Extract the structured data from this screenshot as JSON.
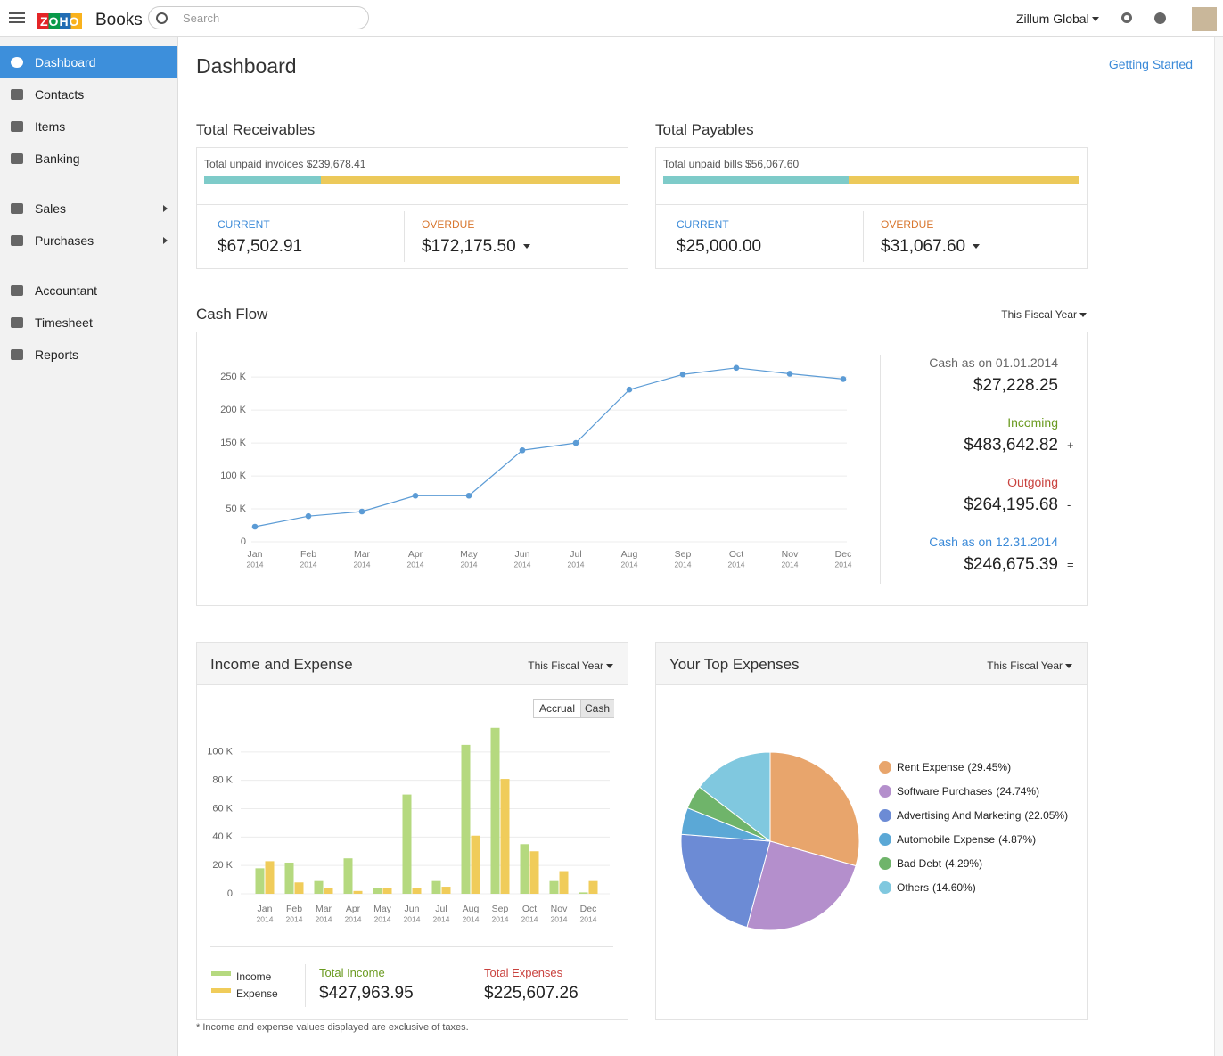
{
  "header": {
    "logo": "ZOHO",
    "brand": "Books",
    "search": "Search",
    "org": "Zillum Global"
  },
  "sidebar": {
    "items": [
      "Dashboard",
      "Contacts",
      "Items",
      "Banking",
      "Sales",
      "Purchases",
      "Accountant",
      "Timesheet",
      "Reports"
    ]
  },
  "page": {
    "title": "Dashboard",
    "link": "Getting Started"
  },
  "receivables": {
    "title": "Total Receivables",
    "summary": "Total unpaid invoices $239,678.41",
    "current_label": "CURRENT",
    "current": {
      "value": 67502.91,
      "label": "$67,502.91"
    },
    "overdue_label": "OVERDUE",
    "overdue": {
      "value": 172175.5,
      "label": "$172,175.50"
    }
  },
  "payables": {
    "title": "Total Payables",
    "summary": "Total unpaid bills $56,067.60",
    "current_label": "CURRENT",
    "current": {
      "value": 25000,
      "label": "$25,000.00"
    },
    "overdue_label": "OVERDUE",
    "overdue": {
      "value": 31067.6,
      "label": "$31,067.60"
    }
  },
  "chart_data": [
    {
      "type": "line",
      "title": "Cash Flow",
      "period": "This Fiscal Year",
      "categories": [
        "Jan",
        "Feb",
        "Mar",
        "Apr",
        "May",
        "Jun",
        "Jul",
        "Aug",
        "Sep",
        "Oct",
        "Nov",
        "Dec"
      ],
      "category_sublabel": "2014",
      "values": [
        23,
        39,
        46,
        70,
        70,
        139,
        150,
        231,
        254,
        264,
        255,
        247
      ],
      "color": "#5b9bd5",
      "ylim": [
        0,
        280
      ],
      "yticks": [
        0,
        {
          "value": 50,
          "label": "50 K"
        },
        {
          "value": 100,
          "label": "100 K"
        },
        {
          "value": 150,
          "label": "150 K"
        },
        {
          "value": 200,
          "label": "200 K"
        },
        {
          "value": 250,
          "label": "250 K"
        }
      ],
      "grid": true,
      "summary": [
        {
          "label": "Cash as on 01.01.2014",
          "amount": "$27,228.25",
          "color": "#666666"
        },
        {
          "label": "Incoming",
          "amount": "$483,642.82",
          "sign": "+",
          "color": "#6a9a1f"
        },
        {
          "label": "Outgoing",
          "amount": "$264,195.68",
          "sign": "-",
          "color": "#c9423e"
        },
        {
          "label": "Cash as on 12.31.2014",
          "amount": "$246,675.39",
          "sign": "=",
          "color": "#3b8ad8"
        }
      ]
    },
    {
      "type": "bar",
      "title": "Income and Expense",
      "period": "This Fiscal Year",
      "toggle": [
        "Accrual",
        "Cash"
      ],
      "categories": [
        "Jan",
        "Feb",
        "Mar",
        "Apr",
        "May",
        "Jun",
        "Jul",
        "Aug",
        "Sep",
        "Oct",
        "Nov",
        "Dec"
      ],
      "category_sublabel": "2014",
      "series": [
        {
          "name": "Income",
          "color": "#b5d97f",
          "values": [
            18,
            22,
            9,
            25,
            4,
            70,
            9,
            105,
            117,
            35,
            9,
            1
          ]
        },
        {
          "name": "Expense",
          "color": "#f0cc5a",
          "values": [
            23,
            8,
            4,
            2,
            4,
            4,
            5,
            41,
            81,
            30,
            16,
            9
          ]
        }
      ],
      "ylim": [
        0,
        120
      ],
      "yticks": [
        0,
        {
          "value": 20,
          "label": "20 K"
        },
        {
          "value": 40,
          "label": "40 K"
        },
        {
          "value": 60,
          "label": "60 K"
        },
        {
          "value": 80,
          "label": "80 K"
        },
        {
          "value": 100,
          "label": "100 K"
        }
      ],
      "grid": true,
      "totals": [
        {
          "label": "Total Income",
          "amount": "$427,963.95",
          "color": "#6a9a1f"
        },
        {
          "label": "Total Expenses",
          "amount": "$225,607.26",
          "color": "#c9423e"
        }
      ],
      "note": "* Income and expense values displayed are exclusive of taxes."
    },
    {
      "type": "pie",
      "title": "Your Top Expenses",
      "period": "This Fiscal Year",
      "categories": [
        "Rent Expense",
        "Software Purchases",
        "Advertising And Marketing",
        "Automobile Expense",
        "Bad Debt",
        "Others"
      ],
      "values": [
        29.45,
        24.74,
        22.05,
        4.87,
        4.29,
        14.6
      ],
      "value_labels": [
        "(29.45%)",
        "(24.74%)",
        "(22.05%)",
        "(4.87%)",
        "(4.29%)",
        "(14.60%)"
      ],
      "colors": [
        "#e8a56c",
        "#b48fcc",
        "#6c8bd5",
        "#5ba8d6",
        "#6fb46a",
        "#80c8df"
      ]
    }
  ]
}
